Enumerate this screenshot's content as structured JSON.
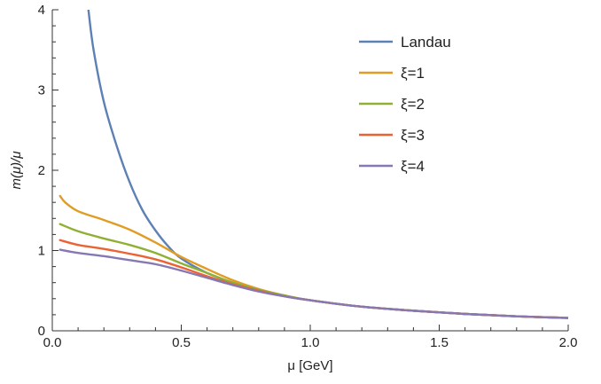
{
  "chart_data": {
    "type": "line",
    "title": "",
    "xlabel": "μ [GeV]",
    "ylabel": "m(μ)/μ",
    "xlim": [
      0,
      2.0
    ],
    "ylim": [
      0,
      4
    ],
    "x_ticks": [
      "0.0",
      "0.5",
      "1.0",
      "1.5",
      "2.0"
    ],
    "y_ticks": [
      "0",
      "1",
      "2",
      "3",
      "4"
    ],
    "grid": false,
    "legend_position": "top-right",
    "series": [
      {
        "name": "Landau",
        "color": "#5e81b5",
        "points": [
          [
            0.14,
            4.0
          ],
          [
            0.16,
            3.5
          ],
          [
            0.2,
            2.85
          ],
          [
            0.25,
            2.3
          ],
          [
            0.3,
            1.85
          ],
          [
            0.35,
            1.5
          ],
          [
            0.4,
            1.25
          ],
          [
            0.45,
            1.05
          ],
          [
            0.5,
            0.9
          ],
          [
            0.6,
            0.72
          ],
          [
            0.7,
            0.6
          ],
          [
            0.8,
            0.5
          ],
          [
            0.9,
            0.43
          ],
          [
            1.0,
            0.38
          ],
          [
            1.2,
            0.3
          ],
          [
            1.4,
            0.25
          ],
          [
            1.6,
            0.21
          ],
          [
            1.8,
            0.18
          ],
          [
            2.0,
            0.16
          ]
        ]
      },
      {
        "name": "ξ=1",
        "color": "#e19c24",
        "points": [
          [
            0.03,
            1.68
          ],
          [
            0.05,
            1.6
          ],
          [
            0.1,
            1.49
          ],
          [
            0.2,
            1.38
          ],
          [
            0.3,
            1.26
          ],
          [
            0.4,
            1.1
          ],
          [
            0.5,
            0.92
          ],
          [
            0.6,
            0.77
          ],
          [
            0.7,
            0.63
          ],
          [
            0.8,
            0.52
          ],
          [
            0.9,
            0.44
          ],
          [
            1.0,
            0.38
          ],
          [
            1.2,
            0.3
          ],
          [
            1.4,
            0.25
          ],
          [
            1.6,
            0.21
          ],
          [
            1.8,
            0.18
          ],
          [
            2.0,
            0.16
          ]
        ]
      },
      {
        "name": "ξ=2",
        "color": "#8fb032",
        "points": [
          [
            0.03,
            1.33
          ],
          [
            0.1,
            1.24
          ],
          [
            0.2,
            1.15
          ],
          [
            0.3,
            1.07
          ],
          [
            0.4,
            0.97
          ],
          [
            0.5,
            0.84
          ],
          [
            0.6,
            0.72
          ],
          [
            0.7,
            0.6
          ],
          [
            0.8,
            0.51
          ],
          [
            0.9,
            0.44
          ],
          [
            1.0,
            0.38
          ],
          [
            1.2,
            0.3
          ],
          [
            1.4,
            0.25
          ],
          [
            1.6,
            0.21
          ],
          [
            1.8,
            0.18
          ],
          [
            2.0,
            0.16
          ]
        ]
      },
      {
        "name": "ξ=3",
        "color": "#eb6235",
        "points": [
          [
            0.03,
            1.13
          ],
          [
            0.1,
            1.07
          ],
          [
            0.2,
            1.02
          ],
          [
            0.3,
            0.96
          ],
          [
            0.4,
            0.89
          ],
          [
            0.5,
            0.79
          ],
          [
            0.6,
            0.68
          ],
          [
            0.7,
            0.58
          ],
          [
            0.8,
            0.5
          ],
          [
            0.9,
            0.43
          ],
          [
            1.0,
            0.38
          ],
          [
            1.2,
            0.3
          ],
          [
            1.4,
            0.25
          ],
          [
            1.6,
            0.21
          ],
          [
            1.8,
            0.18
          ],
          [
            2.0,
            0.16
          ]
        ]
      },
      {
        "name": "ξ=4",
        "color": "#8778b3",
        "points": [
          [
            0.03,
            1.01
          ],
          [
            0.1,
            0.97
          ],
          [
            0.2,
            0.93
          ],
          [
            0.3,
            0.88
          ],
          [
            0.4,
            0.83
          ],
          [
            0.5,
            0.75
          ],
          [
            0.6,
            0.66
          ],
          [
            0.7,
            0.57
          ],
          [
            0.8,
            0.49
          ],
          [
            0.9,
            0.43
          ],
          [
            1.0,
            0.38
          ],
          [
            1.2,
            0.3
          ],
          [
            1.4,
            0.25
          ],
          [
            1.6,
            0.21
          ],
          [
            1.8,
            0.18
          ],
          [
            2.0,
            0.16
          ]
        ]
      }
    ]
  }
}
